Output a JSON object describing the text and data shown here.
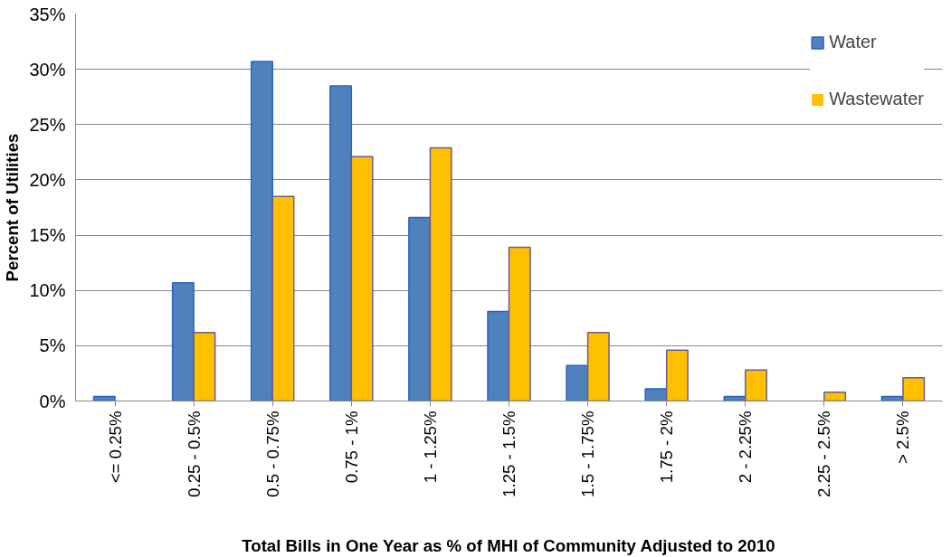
{
  "chart_data": {
    "type": "bar",
    "xlabel": "Total Bills in One Year as % of MHI of Community Adjusted to 2010",
    "ylabel": "Percent of Utilities",
    "categories": [
      "<= 0.25%",
      "0.25 - 0.5%",
      "0.5 - 0.75%",
      "0.75 - 1%",
      "1 - 1.25%",
      "1.25 - 1.5%",
      "1.5 - 1.75%",
      "1.75 - 2%",
      "2 - 2.25%",
      "2.25 - 2.5%",
      "> 2.5%"
    ],
    "series": [
      {
        "name": "Water",
        "color": "#4f81bd",
        "values": [
          0.4,
          10.7,
          30.7,
          28.5,
          16.6,
          8.1,
          3.2,
          1.1,
          0.4,
          0,
          0.4
        ]
      },
      {
        "name": "Wastewater",
        "color": "#ffc000",
        "values": [
          0,
          6.2,
          18.5,
          22.1,
          22.9,
          13.9,
          6.2,
          4.6,
          2.8,
          0.8,
          2.1
        ]
      }
    ],
    "ylim": [
      0,
      35
    ],
    "yticks": [
      {
        "value": 0,
        "label": "0%"
      },
      {
        "value": 5,
        "label": "5%"
      },
      {
        "value": 10,
        "label": "10%"
      },
      {
        "value": 15,
        "label": "15%"
      },
      {
        "value": 20,
        "label": "20%"
      },
      {
        "value": 25,
        "label": "25%"
      },
      {
        "value": 30,
        "label": "30%"
      },
      {
        "value": 35,
        "label": "35%"
      }
    ],
    "grid": "y",
    "legend": "top right"
  }
}
